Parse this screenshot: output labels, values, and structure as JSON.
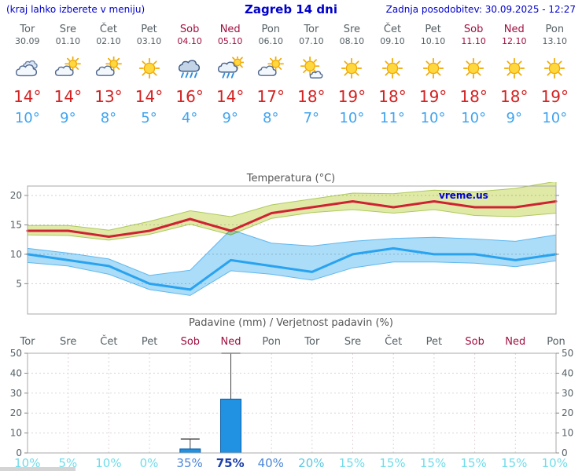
{
  "header": {
    "left_note": "(kraj lahko izberete v meniju)",
    "title": "Zagreb 14 dni",
    "updated": "Zadnja posodobitev: 30.09.2025 - 12:27"
  },
  "colors": {
    "header_blue": "#0000cc",
    "weekday_gray": "#556066",
    "weekend_red": "#a01040",
    "temp_high_red": "#d42222",
    "temp_low_blue": "#3fa4ef",
    "prob_low_cyan": "#6fdcea",
    "prob_mid_blue": "#4a86d8",
    "prob_high_navy": "#1b3fa8"
  },
  "days": [
    {
      "name": "Tor",
      "date": "30.09",
      "weekend": false,
      "icon": "cloudy",
      "high": "14°",
      "low": "10°",
      "prob": "10%",
      "prob_color": "#6fdcea",
      "prob_bold": false
    },
    {
      "name": "Sre",
      "date": "01.10",
      "weekend": false,
      "icon": "partly",
      "high": "14°",
      "low": "9°",
      "prob": "5%",
      "prob_color": "#6fdcea",
      "prob_bold": false
    },
    {
      "name": "Čet",
      "date": "02.10",
      "weekend": false,
      "icon": "partly",
      "high": "13°",
      "low": "8°",
      "prob": "10%",
      "prob_color": "#6fdcea",
      "prob_bold": false
    },
    {
      "name": "Pet",
      "date": "03.10",
      "weekend": false,
      "icon": "sunny",
      "high": "14°",
      "low": "5°",
      "prob": "0%",
      "prob_color": "#6fdcea",
      "prob_bold": false
    },
    {
      "name": "Sob",
      "date": "04.10",
      "weekend": true,
      "icon": "rain",
      "high": "16°",
      "low": "4°",
      "prob": "35%",
      "prob_color": "#4a86d8",
      "prob_bold": false
    },
    {
      "name": "Ned",
      "date": "05.10",
      "weekend": true,
      "icon": "sun-rain",
      "high": "14°",
      "low": "9°",
      "prob": "75%",
      "prob_color": "#1b3fa8",
      "prob_bold": true
    },
    {
      "name": "Pon",
      "date": "06.10",
      "weekend": false,
      "icon": "partly",
      "high": "17°",
      "low": "8°",
      "prob": "40%",
      "prob_color": "#4a86d8",
      "prob_bold": false
    },
    {
      "name": "Tor",
      "date": "07.10",
      "weekend": false,
      "icon": "mostly-sunny",
      "high": "18°",
      "low": "7°",
      "prob": "20%",
      "prob_color": "#58c8e4",
      "prob_bold": false
    },
    {
      "name": "Sre",
      "date": "08.10",
      "weekend": false,
      "icon": "sunny",
      "high": "19°",
      "low": "10°",
      "prob": "15%",
      "prob_color": "#6fdcea",
      "prob_bold": false
    },
    {
      "name": "Čet",
      "date": "09.10",
      "weekend": false,
      "icon": "sunny",
      "high": "18°",
      "low": "11°",
      "prob": "15%",
      "prob_color": "#6fdcea",
      "prob_bold": false
    },
    {
      "name": "Pet",
      "date": "10.10",
      "weekend": false,
      "icon": "sunny",
      "high": "19°",
      "low": "10°",
      "prob": "15%",
      "prob_color": "#6fdcea",
      "prob_bold": false
    },
    {
      "name": "Sob",
      "date": "11.10",
      "weekend": true,
      "icon": "sunny",
      "high": "18°",
      "low": "10°",
      "prob": "15%",
      "prob_color": "#6fdcea",
      "prob_bold": false
    },
    {
      "name": "Ned",
      "date": "12.10",
      "weekend": true,
      "icon": "sunny",
      "high": "18°",
      "low": "9°",
      "prob": "15%",
      "prob_color": "#6fdcea",
      "prob_bold": false
    },
    {
      "name": "Pon",
      "date": "13.10",
      "weekend": false,
      "icon": "sunny",
      "high": "19°",
      "low": "10°",
      "prob": "10%",
      "prob_color": "#6fdcea",
      "prob_bold": false
    }
  ],
  "chart_data": [
    {
      "type": "line",
      "title": "Temperatura (°C)",
      "x_categories": [
        "Tor 30.09",
        "Sre 01.10",
        "Čet 02.10",
        "Pet 03.10",
        "Sob 04.10",
        "Ned 05.10",
        "Pon 06.10",
        "Tor 07.10",
        "Sre 08.10",
        "Čet 09.10",
        "Pet 10.10",
        "Sob 11.10",
        "Ned 12.10",
        "Pon 13.10"
      ],
      "ylim": [
        -0.15,
        21.6
      ],
      "yticks": [
        5,
        10,
        15,
        20
      ],
      "grid": "horizontal-dashed",
      "series": [
        {
          "name": "max-temperature-line",
          "color": "#cf2233",
          "values": [
            14,
            14,
            13,
            14,
            16,
            14,
            17,
            18,
            19,
            18,
            19,
            18,
            18,
            19
          ]
        },
        {
          "name": "min-temperature-line",
          "color": "#29a3ef",
          "values": [
            10,
            9,
            8,
            5,
            4,
            9,
            8,
            7,
            10,
            11,
            10,
            10,
            9,
            10
          ]
        }
      ],
      "bands": [
        {
          "name": "max-temperature-band",
          "fill": "#e0eaa6",
          "stroke": "#adc95c",
          "upper": [
            14.9,
            14.9,
            14.1,
            15.6,
            17.4,
            16.4,
            18.4,
            19.4,
            20.4,
            20.3,
            20.9,
            20.6,
            21.2,
            22.4
          ],
          "lower": [
            13.3,
            13.2,
            12.4,
            13.4,
            15.1,
            13.3,
            16.1,
            17.1,
            17.6,
            17.0,
            17.6,
            16.6,
            16.4,
            17.0
          ]
        },
        {
          "name": "min-temperature-band",
          "fill": "#abdcf8",
          "stroke": "#5fb8ef",
          "upper": [
            11.0,
            10.2,
            9.2,
            6.4,
            7.3,
            14.2,
            11.9,
            11.4,
            12.2,
            12.7,
            12.9,
            12.6,
            12.2,
            13.3
          ],
          "lower": [
            8.6,
            8.0,
            6.6,
            4.0,
            3.0,
            7.2,
            6.6,
            5.6,
            7.7,
            8.7,
            8.7,
            8.5,
            7.9,
            8.9
          ]
        }
      ],
      "watermark": "vreme.us",
      "watermark_color": "#0000cc"
    },
    {
      "type": "bar",
      "title": "Padavine (mm) / Verjetnost padavin (%)",
      "x_categories": [
        "Tor",
        "Sre",
        "Čet",
        "Pet",
        "Sob",
        "Ned",
        "Pon",
        "Tor",
        "Sre",
        "Čet",
        "Pet",
        "Sob",
        "Ned",
        "Pon"
      ],
      "ylim": [
        0,
        50
      ],
      "yticks": [
        0,
        10,
        20,
        30,
        40,
        50
      ],
      "grid": "both-dashed",
      "values_mm": [
        0,
        0,
        0,
        0,
        2,
        27,
        0,
        0,
        0,
        0,
        0,
        0,
        0,
        0
      ],
      "whisker_max_mm": [
        0,
        0,
        0,
        0,
        7,
        50,
        0,
        0,
        0,
        0,
        0,
        0,
        0,
        0
      ],
      "bar_fill": "#2191e2",
      "bar_stroke": "#0d5fa6",
      "probabilities_pct": [
        10,
        5,
        10,
        0,
        35,
        75,
        40,
        20,
        15,
        15,
        15,
        15,
        15,
        10
      ]
    }
  ]
}
